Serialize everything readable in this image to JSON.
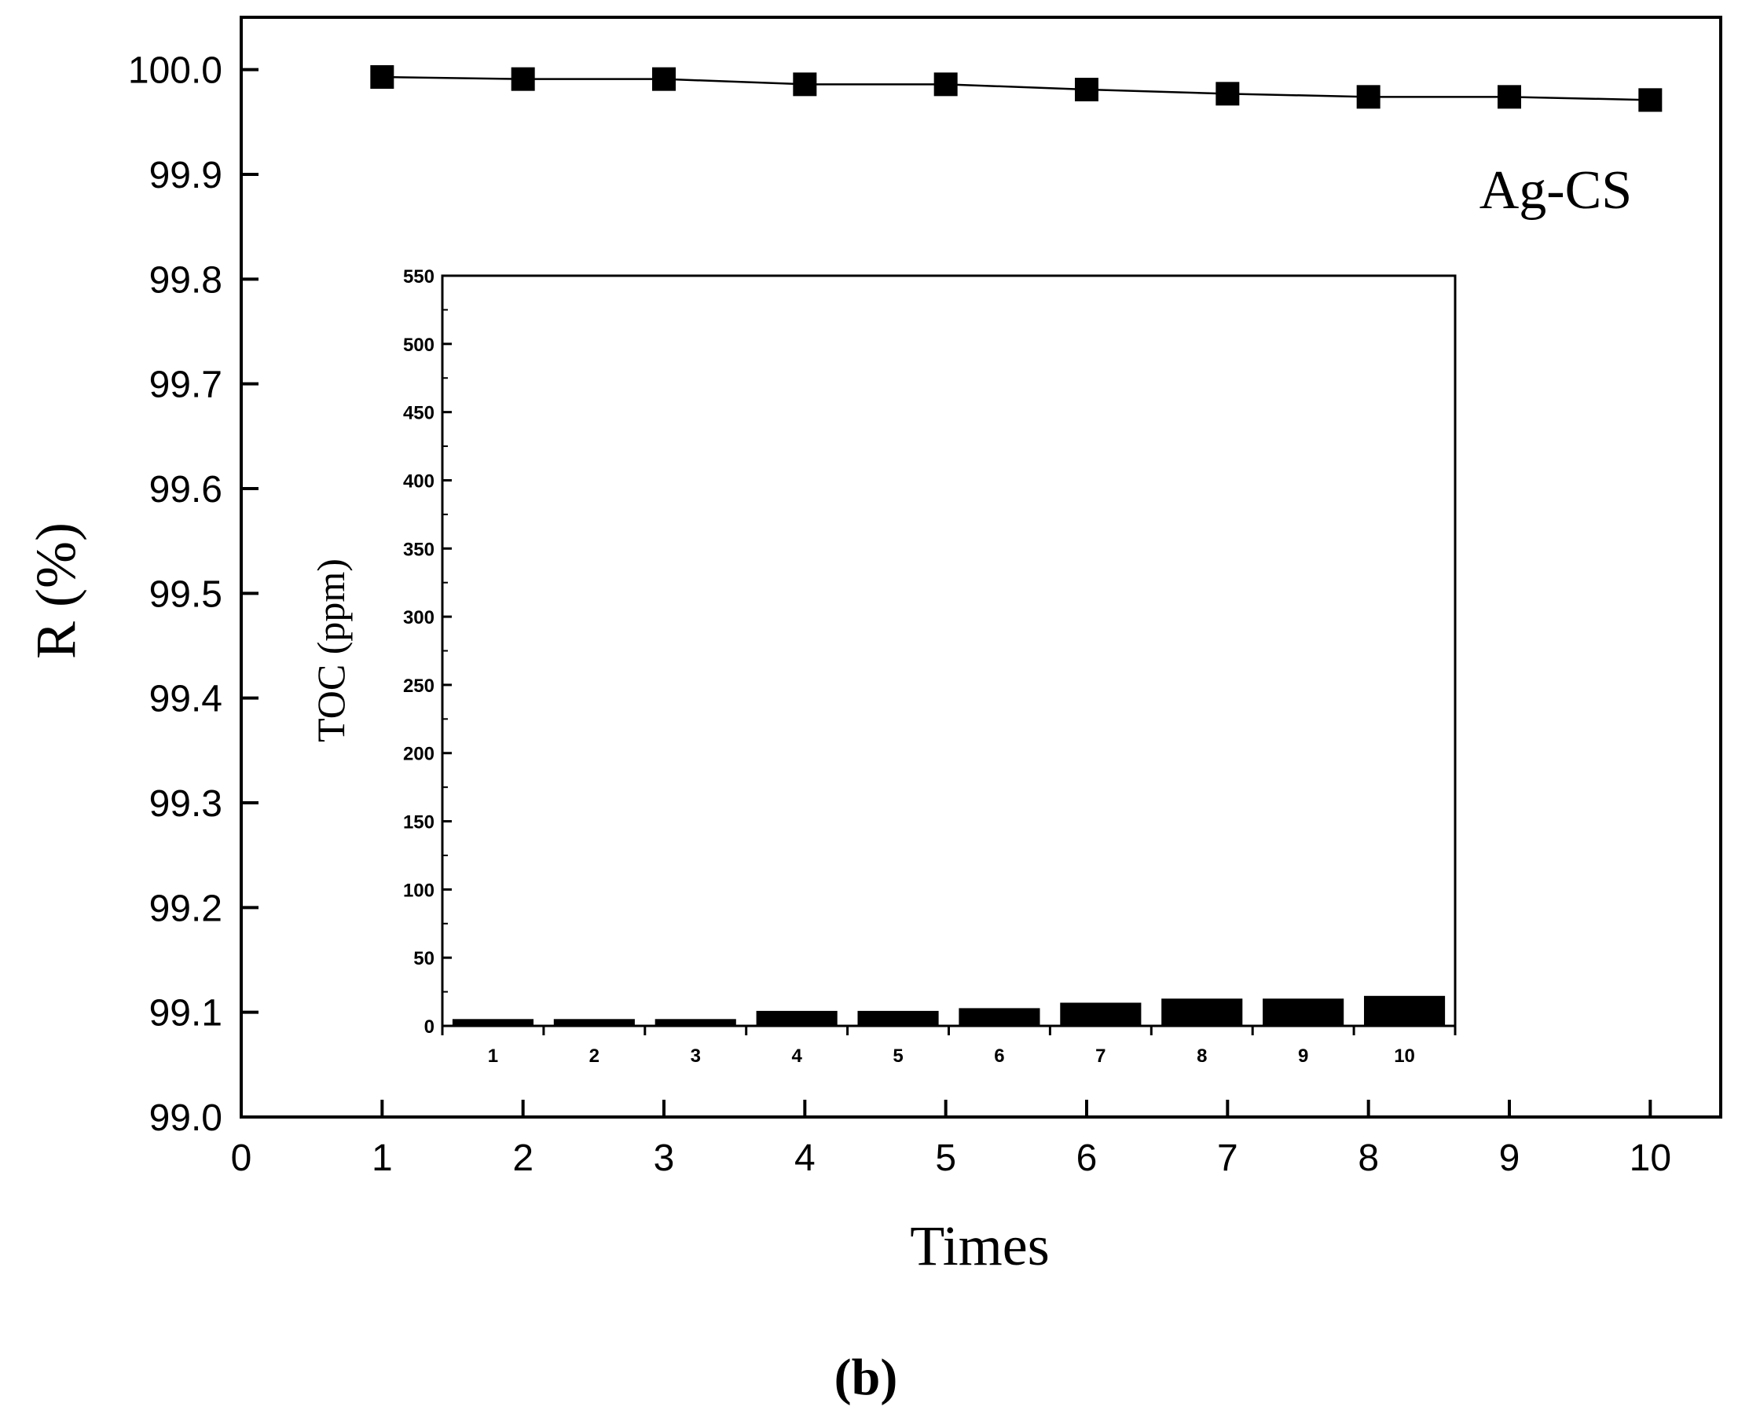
{
  "chart_data": [
    {
      "type": "line",
      "title": "",
      "xlabel": "Times",
      "ylabel": "R (%)",
      "annotation": "Ag-CS",
      "panel_label": "(b)",
      "xlim": [
        0,
        10.5
      ],
      "ylim": [
        99.0,
        100.05
      ],
      "x_ticks": [
        0,
        1,
        2,
        3,
        4,
        5,
        6,
        7,
        8,
        9,
        10
      ],
      "x_tick_labels": [
        "0",
        "1",
        "2",
        "3",
        "4",
        "5",
        "6",
        "7",
        "8",
        "9",
        "10"
      ],
      "y_ticks": [
        99.0,
        99.1,
        99.2,
        99.3,
        99.4,
        99.5,
        99.6,
        99.7,
        99.8,
        99.9,
        100.0
      ],
      "y_tick_labels": [
        "99.0",
        "99.1",
        "99.2",
        "99.3",
        "99.4",
        "99.5",
        "99.6",
        "99.7",
        "99.8",
        "99.9",
        "100.0"
      ],
      "grid": false,
      "marker": "square",
      "x": [
        1,
        2,
        3,
        4,
        5,
        6,
        7,
        8,
        9,
        10
      ],
      "y": [
        99.993,
        99.991,
        99.991,
        99.986,
        99.986,
        99.981,
        99.977,
        99.974,
        99.974,
        99.971
      ]
    },
    {
      "type": "bar",
      "title": "",
      "xlabel": "",
      "ylabel": "TOC (ppm)",
      "categories": [
        "1",
        "2",
        "3",
        "4",
        "5",
        "6",
        "7",
        "8",
        "9",
        "10"
      ],
      "values": [
        5,
        5,
        5,
        11,
        11,
        13,
        17,
        20,
        20,
        22
      ],
      "ylim": [
        0,
        550
      ],
      "y_ticks": [
        0,
        50,
        100,
        150,
        200,
        250,
        300,
        350,
        400,
        450,
        500,
        550
      ],
      "y_tick_labels": [
        "0",
        "50",
        "100",
        "150",
        "200",
        "250",
        "300",
        "350",
        "400",
        "450",
        "500",
        "550"
      ],
      "grid": false,
      "color": "#000000"
    }
  ]
}
